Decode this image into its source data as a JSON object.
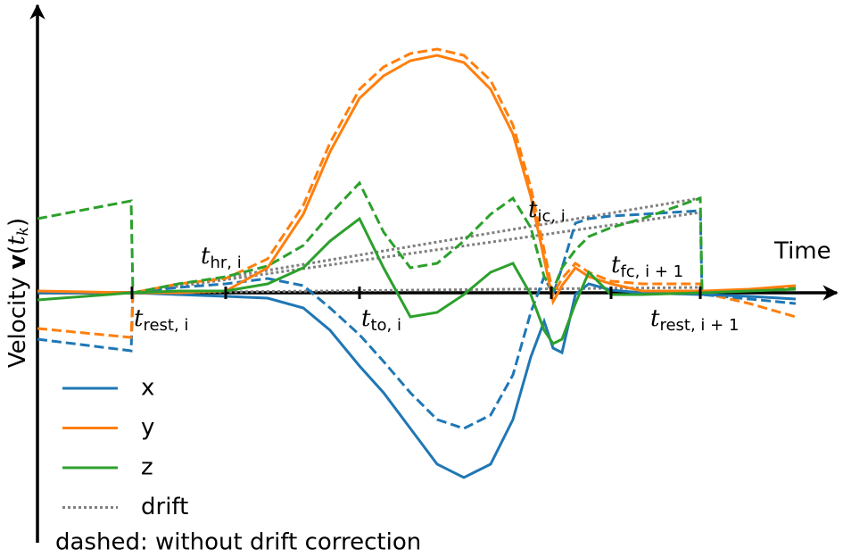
{
  "chart_data": {
    "type": "line",
    "xlabel": "Time",
    "ylabel_parts": [
      "Velocity ",
      "v",
      "(",
      "t",
      "k",
      ")"
    ],
    "note": "dashed: without drift correction",
    "xlim": [
      0,
      9
    ],
    "ylim": [
      -2.8,
      3.2
    ],
    "x": [
      0,
      1.05,
      1.07,
      1.58,
      2.11,
      2.58,
      2.98,
      3.28,
      3.61,
      3.88,
      4.18,
      4.48,
      4.78,
      5.08,
      5.33,
      5.53,
      5.68,
      5.78,
      5.88,
      6.03,
      6.18,
      6.43,
      6.78,
      7.43,
      7.45,
      7.98,
      8.5
    ],
    "series": [
      {
        "name": "x",
        "color": "#1f77b4",
        "values": [
          0,
          0,
          0,
          -0.02,
          -0.04,
          -0.06,
          -0.17,
          -0.42,
          -0.82,
          -1.12,
          -1.52,
          -1.92,
          -2.07,
          -1.92,
          -1.42,
          -0.72,
          -0.32,
          -0.62,
          -0.67,
          -0.02,
          0.1,
          0.03,
          0,
          -0.02,
          -0.02,
          -0.04,
          -0.07
        ],
        "uncorrected": [
          -0.52,
          -0.65,
          0,
          0.06,
          0.1,
          0.16,
          0.08,
          -0.17,
          -0.47,
          -0.77,
          -1.12,
          -1.42,
          -1.52,
          -1.37,
          -0.92,
          -0.22,
          0.18,
          -0.02,
          0.28,
          0.78,
          0.83,
          0.86,
          0.88,
          0.92,
          -0.02,
          -0.07,
          -0.12
        ]
      },
      {
        "name": "y",
        "color": "#ff7f0e",
        "values": [
          0.02,
          0,
          0,
          0,
          0.02,
          0.28,
          0.88,
          1.58,
          2.18,
          2.43,
          2.6,
          2.66,
          2.58,
          2.28,
          1.78,
          1.08,
          0.38,
          -0.1,
          0.08,
          0.28,
          0.18,
          0.1,
          0.02,
          0.02,
          0.02,
          0.04,
          0.08
        ],
        "uncorrected": [
          -0.4,
          -0.5,
          0,
          0.1,
          0.16,
          0.38,
          0.98,
          1.68,
          2.28,
          2.53,
          2.68,
          2.73,
          2.66,
          2.38,
          1.88,
          1.18,
          0.48,
          -0.02,
          0.16,
          0.33,
          0.23,
          0.13,
          0.1,
          0.1,
          0,
          -0.12,
          -0.27
        ]
      },
      {
        "name": "z",
        "color": "#2ca02c",
        "values": [
          -0.08,
          0,
          0,
          0.02,
          0.02,
          0.1,
          0.28,
          0.58,
          0.83,
          0.28,
          -0.27,
          -0.22,
          -0.02,
          0.23,
          0.33,
          -0.02,
          -0.42,
          -0.57,
          -0.52,
          -0.12,
          0.23,
          -0.02,
          -0.02,
          0,
          0,
          0.02,
          0.04
        ],
        "uncorrected": [
          0.83,
          1.03,
          0,
          0.1,
          0.18,
          0.3,
          0.53,
          0.88,
          1.23,
          0.68,
          0.28,
          0.33,
          0.58,
          0.88,
          1.06,
          0.73,
          0.18,
          0.03,
          0.28,
          0.48,
          0.63,
          0.73,
          0.83,
          1.06,
          0,
          0.03,
          0.06
        ]
      },
      {
        "name": "drift",
        "color": "#808080",
        "x": [
          1.07,
          7.43
        ],
        "lines": [
          [
            0,
            1.06
          ],
          [
            0,
            0.9
          ],
          [
            0,
            0.06
          ]
        ]
      }
    ],
    "events": [
      {
        "x": 1.06,
        "main": "t",
        "sub": "rest, i"
      },
      {
        "x": 2.11,
        "main": "t",
        "sub": "hr, i"
      },
      {
        "x": 3.61,
        "main": "t",
        "sub": "to, i"
      },
      {
        "x": 5.76,
        "main": "t",
        "sub": "ic, i"
      },
      {
        "x": 6.43,
        "main": "t",
        "sub": "fc, i + 1"
      },
      {
        "x": 7.43,
        "main": "t",
        "sub": "rest, i + 1"
      }
    ]
  }
}
